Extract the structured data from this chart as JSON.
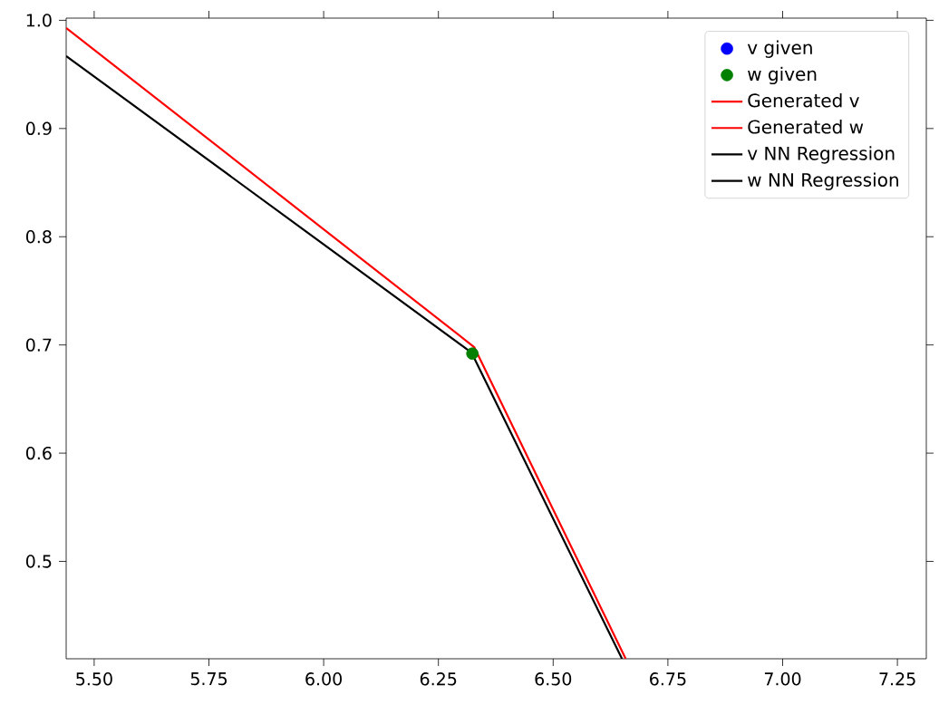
{
  "chart_data": {
    "type": "line",
    "xlim": [
      5.439,
      7.313
    ],
    "ylim": [
      0.41,
      1.002
    ],
    "xticks": [
      {
        "value": 5.5,
        "label": "5.50"
      },
      {
        "value": 5.75,
        "label": "5.75"
      },
      {
        "value": 6.0,
        "label": "6.00"
      },
      {
        "value": 6.25,
        "label": "6.25"
      },
      {
        "value": 6.5,
        "label": "6.50"
      },
      {
        "value": 6.75,
        "label": "6.75"
      },
      {
        "value": 7.0,
        "label": "7.00"
      },
      {
        "value": 7.25,
        "label": "7.25"
      }
    ],
    "yticks": [
      {
        "value": 0.5,
        "label": "0.5"
      },
      {
        "value": 0.6,
        "label": "0.6"
      },
      {
        "value": 0.7,
        "label": "0.7"
      },
      {
        "value": 0.8,
        "label": "0.8"
      },
      {
        "value": 0.9,
        "label": "0.9"
      },
      {
        "value": 1.0,
        "label": "1.0"
      }
    ],
    "legend": "top right",
    "series": [
      {
        "name": "v given",
        "type": "scatter",
        "marker": "circle",
        "color": "#0000ff",
        "values": [
          null
        ]
      },
      {
        "name": "w given",
        "type": "scatter",
        "marker": "circle",
        "color": "#008000",
        "x": [
          6.324
        ],
        "values": [
          0.692
        ]
      },
      {
        "name": "Generated v",
        "color": "#ff0000",
        "x": [
          5.439,
          6.328,
          6.658
        ],
        "values": [
          0.993,
          0.698,
          0.41
        ]
      },
      {
        "name": "Generated w",
        "color": "#ff0000",
        "values": [
          null
        ]
      },
      {
        "name": "v NN Regression",
        "color": "#000000",
        "x": [
          5.439,
          6.322,
          6.65
        ],
        "values": [
          0.967,
          0.693,
          0.41
        ]
      },
      {
        "name": "w NN Regression",
        "color": "#000000",
        "values": [
          null
        ]
      }
    ]
  }
}
